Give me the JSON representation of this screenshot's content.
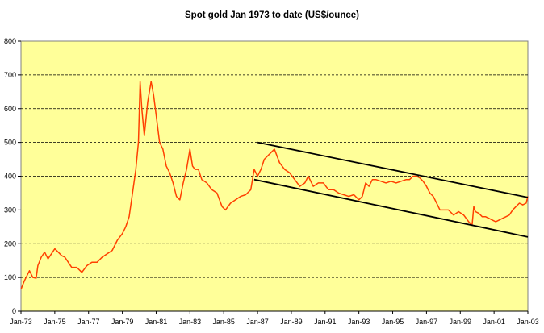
{
  "chart_data": {
    "type": "line",
    "title": "Spot gold Jan 1973 to date (US$/ounce)",
    "xlabel": "",
    "ylabel": "",
    "ylim": [
      0,
      800
    ],
    "yticks": [
      "0",
      "100",
      "200",
      "300",
      "400",
      "500",
      "600",
      "700",
      "800"
    ],
    "xlim": [
      1973.0,
      2003.0
    ],
    "xticks": [
      "Jan-73",
      "Jan-75",
      "Jan-77",
      "Jan-79",
      "Jan-81",
      "Jan-83",
      "Jan-85",
      "Jan-87",
      "Jan-89",
      "Jan-91",
      "Jan-93",
      "Jan-95",
      "Jan-97",
      "Jan-99",
      "Jan-01",
      "Jan-03"
    ],
    "grid": "horizontal dashed",
    "legend": "none",
    "colors": {
      "plot_bg": "#FFFF99",
      "line": "#FF4000",
      "grid": "#000000",
      "trend": "#000000",
      "frame": "#808080"
    },
    "series": [
      {
        "x": [
          1973.0,
          1973.2,
          1973.4,
          1973.5,
          1973.7,
          1973.9,
          1974.0,
          1974.2,
          1974.4,
          1974.6,
          1974.8,
          1975.0,
          1975.2,
          1975.4,
          1975.6,
          1975.8,
          1976.0,
          1976.3,
          1976.6,
          1976.9,
          1977.2,
          1977.5,
          1977.8,
          1978.1,
          1978.4,
          1978.7,
          1979.0,
          1979.2,
          1979.4,
          1979.6,
          1979.8,
          1979.95,
          1980.05,
          1980.15,
          1980.3,
          1980.5,
          1980.7,
          1980.85,
          1981.0,
          1981.2,
          1981.4,
          1981.6,
          1981.8,
          1982.0,
          1982.2,
          1982.4,
          1982.6,
          1982.8,
          1983.0,
          1983.15,
          1983.3,
          1983.5,
          1983.7,
          1984.0,
          1984.3,
          1984.6,
          1984.9,
          1985.1,
          1985.4,
          1985.7,
          1986.0,
          1986.3,
          1986.6,
          1986.8,
          1987.0,
          1987.2,
          1987.4,
          1987.6,
          1987.8,
          1988.0,
          1988.3,
          1988.6,
          1988.9,
          1989.2,
          1989.5,
          1989.8,
          1990.0,
          1990.3,
          1990.6,
          1990.9,
          1991.2,
          1991.5,
          1991.8,
          1992.1,
          1992.4,
          1992.7,
          1993.0,
          1993.2,
          1993.4,
          1993.6,
          1993.8,
          1994.0,
          1994.3,
          1994.6,
          1994.9,
          1995.2,
          1995.5,
          1995.8,
          1996.0,
          1996.2,
          1996.4,
          1996.6,
          1996.8,
          1997.0,
          1997.2,
          1997.4,
          1997.6,
          1997.8,
          1998.0,
          1998.3,
          1998.6,
          1998.9,
          1999.2,
          1999.5,
          1999.7,
          1999.8,
          1999.9,
          2000.1,
          2000.3,
          2000.5,
          2000.7,
          2000.9,
          2001.1,
          2001.3,
          2001.5,
          2001.7,
          2001.9,
          2002.1,
          2002.3,
          2002.5,
          2002.7,
          2002.9,
          2003.0
        ],
        "y": [
          65,
          90,
          110,
          120,
          100,
          98,
          135,
          160,
          175,
          155,
          170,
          185,
          175,
          165,
          160,
          145,
          130,
          130,
          115,
          135,
          145,
          145,
          160,
          170,
          180,
          210,
          230,
          250,
          280,
          350,
          420,
          500,
          680,
          600,
          520,
          620,
          680,
          640,
          580,
          500,
          480,
          430,
          410,
          380,
          340,
          330,
          380,
          420,
          480,
          430,
          420,
          420,
          390,
          380,
          360,
          350,
          310,
          300,
          320,
          330,
          340,
          345,
          360,
          420,
          400,
          420,
          450,
          460,
          470,
          480,
          440,
          420,
          410,
          390,
          370,
          380,
          400,
          370,
          380,
          380,
          360,
          360,
          350,
          345,
          340,
          345,
          330,
          340,
          380,
          370,
          390,
          390,
          385,
          380,
          385,
          380,
          385,
          390,
          390,
          400,
          400,
          395,
          385,
          370,
          350,
          340,
          320,
          300,
          300,
          300,
          285,
          295,
          285,
          265,
          255,
          310,
          295,
          290,
          280,
          280,
          275,
          270,
          265,
          270,
          275,
          280,
          285,
          300,
          310,
          320,
          315,
          320,
          340
        ]
      }
    ],
    "trend_lines": [
      {
        "name": "upper",
        "x": [
          1987.0,
          2003.0
        ],
        "y": [
          500,
          337
        ]
      },
      {
        "name": "lower",
        "x": [
          1986.8,
          2003.0
        ],
        "y": [
          390,
          220
        ]
      }
    ]
  }
}
